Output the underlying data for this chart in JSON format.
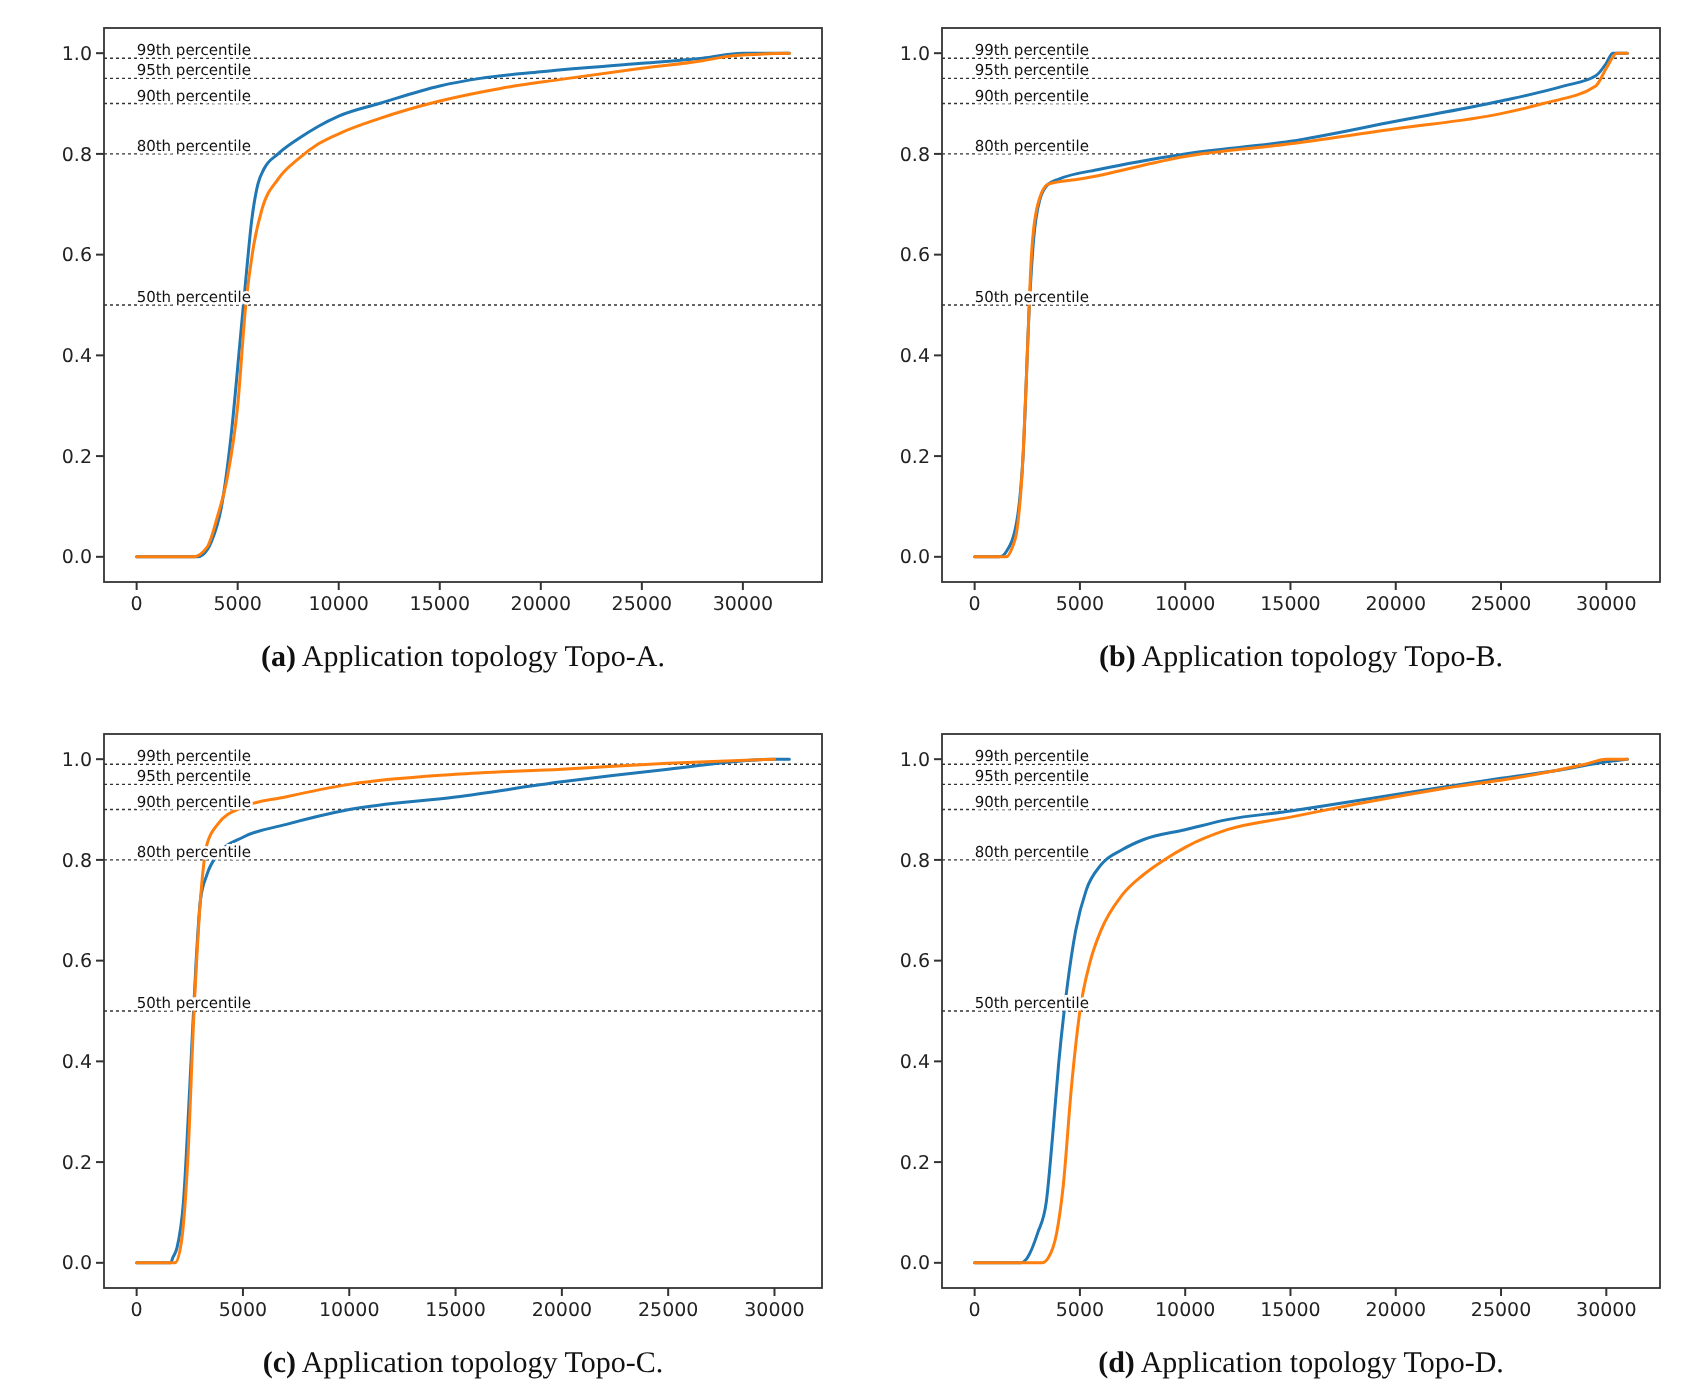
{
  "chart_data": [
    {
      "type": "line",
      "title": "(a) Application topology Topo-A.",
      "xlim": [
        -1615,
        33915
      ],
      "ylim": [
        -0.05,
        1.05
      ],
      "xticks": [
        0,
        5000,
        10000,
        15000,
        20000,
        25000,
        30000
      ],
      "yticks": [
        {
          "value": 0,
          "label": "0.0"
        },
        {
          "value": 0.2,
          "label": "0.2"
        },
        {
          "value": 0.4,
          "label": "0.4"
        },
        {
          "value": 0.6,
          "label": "0.6"
        },
        {
          "value": 0.8,
          "label": "0.8"
        },
        {
          "value": 1,
          "label": "1.0"
        }
      ],
      "grid": false,
      "line_style": "solid",
      "marker": "none",
      "ref_lines": [
        {
          "axis": "y",
          "value": 0.99,
          "label": "99th percentile",
          "color": "#333333",
          "line_style": "dotted"
        },
        {
          "axis": "y",
          "value": 0.95,
          "label": "95th percentile",
          "color": "#333333",
          "line_style": "dotted"
        },
        {
          "axis": "y",
          "value": 0.9,
          "label": "90th percentile",
          "color": "#333333",
          "line_style": "dotted"
        },
        {
          "axis": "y",
          "value": 0.8,
          "label": "80th percentile",
          "color": "#333333",
          "line_style": "dotted"
        },
        {
          "axis": "y",
          "value": 0.5,
          "label": "50th percentile",
          "color": "#333333",
          "line_style": "dotted"
        }
      ],
      "series": [
        {
          "color": "#1f77b4",
          "x": [
            0,
            3000,
            3300,
            3700,
            4200,
            4700,
            5100,
            5400,
            5700,
            6000,
            6300,
            7000,
            8000,
            9000,
            10000,
            12000,
            15000,
            17000,
            20000,
            25000,
            28000,
            30000,
            32300
          ],
          "values": [
            0,
            0,
            0.005,
            0.03,
            0.1,
            0.25,
            0.42,
            0.55,
            0.67,
            0.74,
            0.77,
            0.8,
            0.83,
            0.855,
            0.875,
            0.9,
            0.935,
            0.95,
            0.963,
            0.98,
            0.99,
            1,
            1
          ]
        },
        {
          "color": "#ff7f0e",
          "x": [
            0,
            2800,
            3500,
            4000,
            4500,
            5000,
            5400,
            5800,
            6200,
            7000,
            8000,
            9000,
            10000,
            12000,
            15000,
            18000,
            21000,
            25000,
            28000,
            29500,
            32300
          ],
          "values": [
            0,
            0,
            0.02,
            0.08,
            0.16,
            0.3,
            0.5,
            0.62,
            0.69,
            0.75,
            0.79,
            0.82,
            0.84,
            0.87,
            0.905,
            0.93,
            0.948,
            0.97,
            0.985,
            0.995,
            1
          ]
        }
      ]
    },
    {
      "type": "line",
      "title": "(b) Application topology Topo-B.",
      "xlim": [
        -1550,
        32550
      ],
      "ylim": [
        -0.05,
        1.05
      ],
      "xticks": [
        0,
        5000,
        10000,
        15000,
        20000,
        25000,
        30000
      ],
      "yticks": [
        {
          "value": 0,
          "label": "0.0"
        },
        {
          "value": 0.2,
          "label": "0.2"
        },
        {
          "value": 0.4,
          "label": "0.4"
        },
        {
          "value": 0.6,
          "label": "0.6"
        },
        {
          "value": 0.8,
          "label": "0.8"
        },
        {
          "value": 1,
          "label": "1.0"
        }
      ],
      "grid": false,
      "line_style": "solid",
      "marker": "none",
      "ref_lines": [
        {
          "axis": "y",
          "value": 0.99,
          "label": "99th percentile",
          "color": "#333333",
          "line_style": "dotted"
        },
        {
          "axis": "y",
          "value": 0.95,
          "label": "95th percentile",
          "color": "#333333",
          "line_style": "dotted"
        },
        {
          "axis": "y",
          "value": 0.9,
          "label": "90th percentile",
          "color": "#333333",
          "line_style": "dotted"
        },
        {
          "axis": "y",
          "value": 0.8,
          "label": "80th percentile",
          "color": "#333333",
          "line_style": "dotted"
        },
        {
          "axis": "y",
          "value": 0.5,
          "label": "50th percentile",
          "color": "#333333",
          "line_style": "dotted"
        }
      ],
      "series": [
        {
          "color": "#1f77b4",
          "x": [
            0,
            1200,
            1500,
            2000,
            2300,
            2600,
            2800,
            3100,
            3500,
            4000,
            6000,
            10000,
            15000,
            20000,
            25000,
            28000,
            29500,
            30000,
            30300,
            31000
          ],
          "values": [
            0,
            0,
            0.01,
            0.07,
            0.2,
            0.5,
            0.63,
            0.71,
            0.74,
            0.75,
            0.77,
            0.8,
            0.825,
            0.865,
            0.905,
            0.935,
            0.955,
            0.98,
            1,
            1
          ]
        },
        {
          "color": "#ff7f0e",
          "x": [
            0,
            1500,
            1800,
            2000,
            2300,
            2500,
            2700,
            3000,
            3500,
            5000,
            10000,
            15000,
            20000,
            25000,
            27000,
            29500,
            30000,
            30500,
            31000
          ],
          "values": [
            0,
            0,
            0.02,
            0.05,
            0.2,
            0.4,
            0.6,
            0.7,
            0.74,
            0.75,
            0.795,
            0.82,
            0.85,
            0.88,
            0.9,
            0.935,
            0.97,
            1,
            1
          ]
        }
      ]
    },
    {
      "type": "line",
      "title": "(c) Application topology Topo-C.",
      "xlim": [
        -1535,
        32235
      ],
      "ylim": [
        -0.05,
        1.05
      ],
      "xticks": [
        0,
        5000,
        10000,
        15000,
        20000,
        25000,
        30000
      ],
      "yticks": [
        {
          "value": 0,
          "label": "0.0"
        },
        {
          "value": 0.2,
          "label": "0.2"
        },
        {
          "value": 0.4,
          "label": "0.4"
        },
        {
          "value": 0.6,
          "label": "0.6"
        },
        {
          "value": 0.8,
          "label": "0.8"
        },
        {
          "value": 1,
          "label": "1.0"
        }
      ],
      "grid": false,
      "line_style": "solid",
      "marker": "none",
      "ref_lines": [
        {
          "axis": "y",
          "value": 0.99,
          "label": "99th percentile",
          "color": "#333333",
          "line_style": "dotted"
        },
        {
          "axis": "y",
          "value": 0.95,
          "label": "95th percentile",
          "color": "#333333",
          "line_style": "dotted"
        },
        {
          "axis": "y",
          "value": 0.9,
          "label": "90th percentile",
          "color": "#333333",
          "line_style": "dotted"
        },
        {
          "axis": "y",
          "value": 0.8,
          "label": "80th percentile",
          "color": "#333333",
          "line_style": "dotted"
        },
        {
          "axis": "y",
          "value": 0.5,
          "label": "50th percentile",
          "color": "#333333",
          "line_style": "dotted"
        }
      ],
      "series": [
        {
          "color": "#1f77b4",
          "x": [
            0,
            1600,
            1700,
            1900,
            2200,
            2500,
            2800,
            3000,
            3300,
            3800,
            5000,
            7000,
            10000,
            15000,
            20000,
            25000,
            30000,
            30700
          ],
          "values": [
            0,
            0,
            0.01,
            0.03,
            0.12,
            0.35,
            0.6,
            0.72,
            0.77,
            0.81,
            0.845,
            0.87,
            0.9,
            0.925,
            0.955,
            0.98,
            1,
            1
          ]
        },
        {
          "color": "#ff7f0e",
          "x": [
            0,
            1800,
            2100,
            2400,
            2700,
            3000,
            3300,
            3800,
            5000,
            7000,
            10000,
            15000,
            20000,
            25000,
            30000
          ],
          "values": [
            0,
            0,
            0.04,
            0.2,
            0.5,
            0.72,
            0.83,
            0.87,
            0.905,
            0.925,
            0.95,
            0.97,
            0.98,
            0.992,
            1
          ]
        }
      ]
    },
    {
      "type": "line",
      "title": "(d) Application topology Topo-D.",
      "xlim": [
        -1550,
        32550
      ],
      "ylim": [
        -0.05,
        1.05
      ],
      "xticks": [
        0,
        5000,
        10000,
        15000,
        20000,
        25000,
        30000
      ],
      "yticks": [
        {
          "value": 0,
          "label": "0.0"
        },
        {
          "value": 0.2,
          "label": "0.2"
        },
        {
          "value": 0.4,
          "label": "0.4"
        },
        {
          "value": 0.6,
          "label": "0.6"
        },
        {
          "value": 0.8,
          "label": "0.8"
        },
        {
          "value": 1,
          "label": "1.0"
        }
      ],
      "grid": false,
      "line_style": "solid",
      "marker": "none",
      "ref_lines": [
        {
          "axis": "y",
          "value": 0.99,
          "label": "99th percentile",
          "color": "#333333",
          "line_style": "dotted"
        },
        {
          "axis": "y",
          "value": 0.95,
          "label": "95th percentile",
          "color": "#333333",
          "line_style": "dotted"
        },
        {
          "axis": "y",
          "value": 0.9,
          "label": "90th percentile",
          "color": "#333333",
          "line_style": "dotted"
        },
        {
          "axis": "y",
          "value": 0.8,
          "label": "80th percentile",
          "color": "#333333",
          "line_style": "dotted"
        },
        {
          "axis": "y",
          "value": 0.5,
          "label": "50th percentile",
          "color": "#333333",
          "line_style": "dotted"
        }
      ],
      "series": [
        {
          "color": "#1f77b4",
          "x": [
            0,
            2200,
            2500,
            3000,
            3400,
            3700,
            4000,
            4400,
            4800,
            5300,
            6000,
            7000,
            8000,
            10000,
            12000,
            15000,
            17000,
            20000,
            25000,
            28000,
            30000,
            31000
          ],
          "values": [
            0,
            0,
            0.01,
            0.06,
            0.12,
            0.25,
            0.4,
            0.55,
            0.66,
            0.74,
            0.79,
            0.82,
            0.84,
            0.86,
            0.88,
            0.897,
            0.91,
            0.93,
            0.962,
            0.98,
            0.995,
            1
          ]
        },
        {
          "color": "#ff7f0e",
          "x": [
            0,
            3200,
            3500,
            3900,
            4200,
            4600,
            5000,
            5500,
            6000,
            7000,
            8000,
            9000,
            10000,
            12000,
            15000,
            18000,
            22000,
            26000,
            29000,
            30000,
            31000
          ],
          "values": [
            0,
            0,
            0.01,
            0.06,
            0.15,
            0.35,
            0.5,
            0.6,
            0.66,
            0.73,
            0.77,
            0.8,
            0.825,
            0.86,
            0.885,
            0.91,
            0.94,
            0.965,
            0.99,
            1,
            1
          ]
        }
      ]
    }
  ]
}
